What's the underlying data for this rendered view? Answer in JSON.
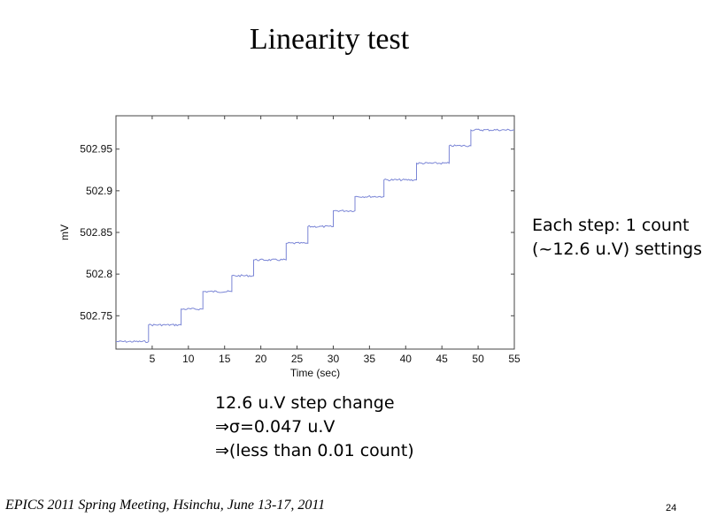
{
  "slide": {
    "title": "Linearity test",
    "note_right": [
      "Each step: 1 count",
      "(~12.6 u.V) settings"
    ],
    "note_bottom": [
      "12.6 u.V step change",
      "⇒σ=0.047 u.V",
      "⇒(less than 0.01 count)"
    ],
    "footer": "EPICS 2011 Spring Meeting, Hsinchu, June 13-17, 2011",
    "page_number": "24"
  },
  "chart_data": {
    "type": "line",
    "title": "",
    "xlabel": "Time (sec)",
    "ylabel": "mV",
    "xlim": [
      0,
      55
    ],
    "ylim": [
      502.71,
      502.99
    ],
    "x_ticks": [
      "5",
      "10",
      "15",
      "20",
      "25",
      "30",
      "35",
      "40",
      "45",
      "50",
      "55"
    ],
    "y_ticks": [
      "502.75",
      "502.8",
      "502.85",
      "502.9",
      "502.95"
    ],
    "grid": false,
    "line_color": "#7b86d6",
    "series": [
      {
        "x": [
          0,
          4.5,
          4.5,
          9,
          9,
          12,
          12,
          16,
          16,
          19,
          19,
          23.5,
          23.5,
          26.5,
          26.5,
          30,
          30,
          33,
          33,
          37,
          37,
          41.5,
          41.5,
          46,
          46,
          49,
          49,
          55
        ],
        "y": [
          502.719,
          502.719,
          502.739,
          502.739,
          502.758,
          502.758,
          502.779,
          502.779,
          502.798,
          502.798,
          502.817,
          502.817,
          502.837,
          502.837,
          502.857,
          502.857,
          502.876,
          502.876,
          502.893,
          502.893,
          502.913,
          502.913,
          502.933,
          502.933,
          502.954,
          502.954,
          502.973,
          502.973
        ]
      }
    ]
  }
}
